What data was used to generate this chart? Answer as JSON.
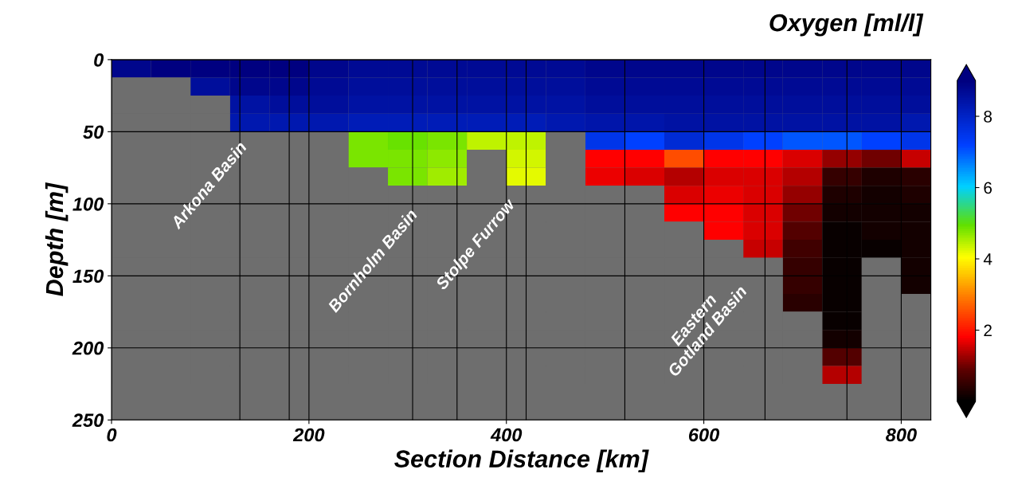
{
  "chart_data": {
    "type": "heatmap",
    "clabel": "Oxygen [ml/l]",
    "xlabel": "Section Distance [km]",
    "ylabel": "Depth [m]",
    "x": [
      20,
      60,
      100,
      140,
      180,
      220,
      260,
      300,
      340,
      380,
      420,
      460,
      500,
      540,
      580,
      620,
      660,
      700,
      740,
      780,
      820
    ],
    "y": [
      6.25,
      18.75,
      31.25,
      43.75,
      56.25,
      68.75,
      81.25,
      93.75,
      106.25,
      118.75,
      131.25,
      143.75,
      156.25,
      168.75,
      181.25,
      193.75,
      206.25,
      218.75
    ],
    "cells": [
      [
        8.8,
        9.0,
        9.0,
        9.0,
        9.0,
        8.8,
        8.7,
        8.7,
        8.7,
        8.7,
        8.7,
        8.7,
        8.8,
        8.8,
        8.8,
        8.8,
        8.8,
        8.8,
        8.8,
        8.8,
        8.8
      ],
      [
        null,
        null,
        8.6,
        8.8,
        8.8,
        8.7,
        8.6,
        8.6,
        8.6,
        8.6,
        8.6,
        8.6,
        8.7,
        8.7,
        8.7,
        8.7,
        8.7,
        8.7,
        8.7,
        8.7,
        8.7
      ],
      [
        null,
        null,
        null,
        8.5,
        8.6,
        8.6,
        8.5,
        8.5,
        8.5,
        8.5,
        8.5,
        8.5,
        8.6,
        8.6,
        8.6,
        8.6,
        8.6,
        8.6,
        8.6,
        8.6,
        8.6
      ],
      [
        null,
        null,
        null,
        8.3,
        8.3,
        8.3,
        8.2,
        8.2,
        8.2,
        8.2,
        8.2,
        8.3,
        8.4,
        8.4,
        8.5,
        8.5,
        8.5,
        8.5,
        8.5,
        8.5,
        8.3
      ],
      [
        null,
        null,
        null,
        null,
        null,
        null,
        4.8,
        4.9,
        4.8,
        4.4,
        4.4,
        null,
        7.5,
        7.2,
        7.8,
        7.5,
        7.2,
        7.0,
        7.0,
        7.2,
        7.5
      ],
      [
        null,
        null,
        null,
        null,
        null,
        null,
        4.8,
        4.8,
        4.7,
        null,
        4.3,
        null,
        1.8,
        1.8,
        2.5,
        1.8,
        1.8,
        1.6,
        1.2,
        1.0,
        1.5
      ],
      [
        null,
        null,
        null,
        null,
        null,
        null,
        null,
        4.8,
        4.6,
        null,
        4.2,
        null,
        1.7,
        1.6,
        1.4,
        1.6,
        1.6,
        1.4,
        0.5,
        0.3,
        0.4
      ],
      [
        null,
        null,
        null,
        null,
        null,
        null,
        null,
        null,
        null,
        null,
        null,
        null,
        null,
        null,
        1.6,
        1.7,
        1.6,
        1.2,
        0.3,
        0.2,
        0.3
      ],
      [
        null,
        null,
        null,
        null,
        null,
        null,
        null,
        null,
        null,
        null,
        null,
        null,
        null,
        null,
        1.8,
        1.8,
        1.6,
        1.0,
        0.2,
        0.2,
        0.2
      ],
      [
        null,
        null,
        null,
        null,
        null,
        null,
        null,
        null,
        null,
        null,
        null,
        null,
        null,
        null,
        null,
        1.8,
        1.6,
        0.8,
        0.1,
        0.2,
        0.2
      ],
      [
        null,
        null,
        null,
        null,
        null,
        null,
        null,
        null,
        null,
        null,
        null,
        null,
        null,
        null,
        null,
        null,
        1.5,
        0.6,
        0.1,
        0.1,
        0.2
      ],
      [
        null,
        null,
        null,
        null,
        null,
        null,
        null,
        null,
        null,
        null,
        null,
        null,
        null,
        null,
        null,
        null,
        null,
        0.5,
        0.1,
        null,
        0.2
      ],
      [
        null,
        null,
        null,
        null,
        null,
        null,
        null,
        null,
        null,
        null,
        null,
        null,
        null,
        null,
        null,
        null,
        null,
        0.5,
        0.1,
        null,
        0.2
      ],
      [
        null,
        null,
        null,
        null,
        null,
        null,
        null,
        null,
        null,
        null,
        null,
        null,
        null,
        null,
        null,
        null,
        null,
        0.4,
        0.1,
        null,
        null
      ],
      [
        null,
        null,
        null,
        null,
        null,
        null,
        null,
        null,
        null,
        null,
        null,
        null,
        null,
        null,
        null,
        null,
        null,
        null,
        0.1,
        null,
        null
      ],
      [
        null,
        null,
        null,
        null,
        null,
        null,
        null,
        null,
        null,
        null,
        null,
        null,
        null,
        null,
        null,
        null,
        null,
        null,
        0.2,
        null,
        null
      ],
      [
        null,
        null,
        null,
        null,
        null,
        null,
        null,
        null,
        null,
        null,
        null,
        null,
        null,
        null,
        null,
        null,
        null,
        null,
        0.8,
        null,
        null
      ],
      [
        null,
        null,
        null,
        null,
        null,
        null,
        null,
        null,
        null,
        null,
        null,
        null,
        null,
        null,
        null,
        null,
        null,
        null,
        1.4,
        null,
        null
      ]
    ],
    "clim": [
      0,
      9
    ],
    "cticks": [
      2,
      4,
      6,
      8
    ],
    "xlim": [
      0,
      830
    ],
    "xticks": [
      0,
      200,
      400,
      600,
      800
    ],
    "ylim": [
      250,
      0
    ],
    "yticks": [
      0,
      50,
      100,
      150,
      200,
      250
    ],
    "grid": true,
    "ref_lines": [
      {
        "axis": "x",
        "value": 130,
        "color": "#000000"
      },
      {
        "axis": "x",
        "value": 180,
        "color": "#000000"
      },
      {
        "axis": "x",
        "value": 305,
        "color": "#000000"
      },
      {
        "axis": "x",
        "value": 350,
        "color": "#000000"
      },
      {
        "axis": "x",
        "value": 420,
        "color": "#000000"
      },
      {
        "axis": "x",
        "value": 520,
        "color": "#000000"
      },
      {
        "axis": "x",
        "value": 662,
        "color": "#000000"
      },
      {
        "axis": "x",
        "value": 745,
        "color": "#000000"
      }
    ],
    "annotations": [
      "Arkona Basin",
      "Bornholm Basin",
      "Stolpe Furrow",
      "Eastern\nGotland Basin"
    ]
  }
}
